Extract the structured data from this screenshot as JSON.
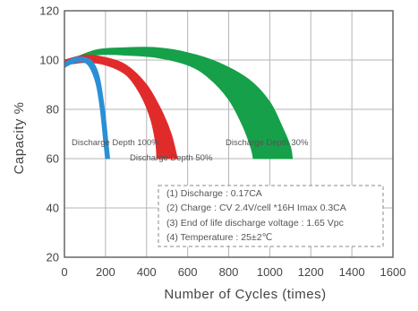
{
  "chart_data": {
    "type": "area",
    "xlabel": "Number of Cycles (times)",
    "ylabel": "Capacity %",
    "xlim": [
      0,
      1600
    ],
    "ylim": [
      20,
      120
    ],
    "x_ticks": [
      "0",
      "200",
      "400",
      "600",
      "800",
      "1000",
      "1200",
      "1400",
      "1600"
    ],
    "y_ticks": [
      "20",
      "40",
      "60",
      "80",
      "100",
      "120"
    ],
    "grid": true,
    "series": [
      {
        "name": "Discharge Depth 100%",
        "color": "#2a8fd6",
        "upper": [
          [
            0,
            99
          ],
          [
            50,
            101
          ],
          [
            100,
            101
          ],
          [
            140,
            99
          ],
          [
            170,
            93
          ],
          [
            195,
            80
          ],
          [
            210,
            68
          ],
          [
            220,
            60
          ]
        ],
        "lower": [
          [
            0,
            97
          ],
          [
            50,
            99
          ],
          [
            100,
            99
          ],
          [
            130,
            96
          ],
          [
            155,
            90
          ],
          [
            175,
            80
          ],
          [
            190,
            68
          ],
          [
            200,
            60
          ]
        ]
      },
      {
        "name": "Discharge Depth 50%",
        "color": "#e12b2b",
        "upper": [
          [
            0,
            100
          ],
          [
            100,
            102
          ],
          [
            200,
            101
          ],
          [
            300,
            98
          ],
          [
            400,
            90
          ],
          [
            470,
            80
          ],
          [
            520,
            70
          ],
          [
            550,
            60
          ]
        ],
        "lower": [
          [
            0,
            98
          ],
          [
            100,
            99
          ],
          [
            200,
            98
          ],
          [
            300,
            94
          ],
          [
            370,
            86
          ],
          [
            420,
            76
          ],
          [
            445,
            66
          ],
          [
            450,
            60
          ]
        ]
      },
      {
        "name": "Discharge Depth 30%",
        "color": "#16a04a",
        "upper": [
          [
            0,
            99
          ],
          [
            150,
            104
          ],
          [
            300,
            105
          ],
          [
            450,
            105
          ],
          [
            600,
            103
          ],
          [
            750,
            99
          ],
          [
            900,
            92
          ],
          [
            1000,
            83
          ],
          [
            1060,
            73
          ],
          [
            1100,
            65
          ],
          [
            1110,
            60
          ]
        ],
        "lower": [
          [
            0,
            98
          ],
          [
            150,
            102
          ],
          [
            300,
            102
          ],
          [
            450,
            101
          ],
          [
            600,
            98
          ],
          [
            700,
            93
          ],
          [
            800,
            84
          ],
          [
            870,
            73
          ],
          [
            910,
            64
          ],
          [
            920,
            60
          ]
        ]
      }
    ],
    "annotations": [
      "Discharge Depth 100%",
      "Discharge Depth 50%",
      "Discharge Depth 30%"
    ],
    "notes": [
      "(1) Discharge : 0.17CA",
      "(2) Charge : CV 2.4V/cell  *16H Imax 0.3CA",
      "(3) End of life discharge voltage : 1.65 Vpc",
      "(4) Temperature : 25±2℃"
    ]
  }
}
